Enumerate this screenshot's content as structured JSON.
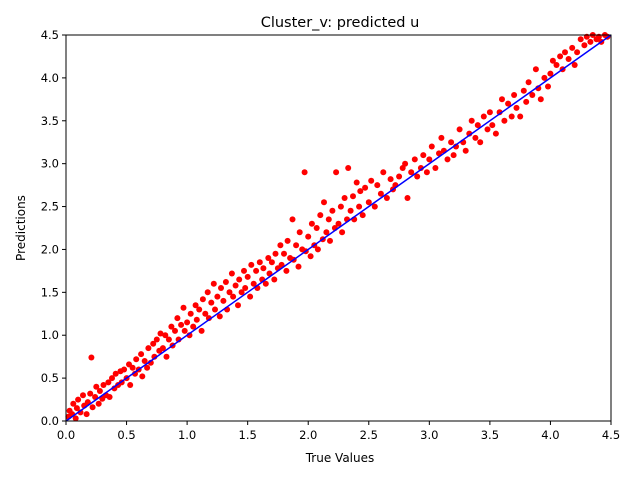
{
  "chart_data": {
    "type": "scatter",
    "title": "Cluster_v: predicted u",
    "xlabel": "True Values",
    "ylabel": "Predictions",
    "xlim": [
      0,
      4.5
    ],
    "ylim": [
      0,
      4.5
    ],
    "xticks": [
      "0.0",
      "0.5",
      "1.0",
      "1.5",
      "2.0",
      "2.5",
      "3.0",
      "3.5",
      "4.0",
      "4.5"
    ],
    "yticks": [
      "0.0",
      "0.5",
      "1.0",
      "1.5",
      "2.0",
      "2.5",
      "3.0",
      "3.5",
      "4.0",
      "4.5"
    ],
    "grid": false,
    "legend": "none",
    "series": [
      {
        "kind": "points",
        "color": "#ff0000",
        "points": [
          [
            0.02,
            0.05
          ],
          [
            0.03,
            0.12
          ],
          [
            0.05,
            0.08
          ],
          [
            0.06,
            0.2
          ],
          [
            0.08,
            0.03
          ],
          [
            0.09,
            0.15
          ],
          [
            0.1,
            0.25
          ],
          [
            0.12,
            0.1
          ],
          [
            0.14,
            0.3
          ],
          [
            0.15,
            0.18
          ],
          [
            0.17,
            0.08
          ],
          [
            0.18,
            0.22
          ],
          [
            0.2,
            0.32
          ],
          [
            0.21,
            0.74
          ],
          [
            0.22,
            0.16
          ],
          [
            0.24,
            0.28
          ],
          [
            0.25,
            0.4
          ],
          [
            0.27,
            0.2
          ],
          [
            0.28,
            0.35
          ],
          [
            0.3,
            0.26
          ],
          [
            0.31,
            0.42
          ],
          [
            0.33,
            0.3
          ],
          [
            0.35,
            0.45
          ],
          [
            0.36,
            0.28
          ],
          [
            0.38,
            0.5
          ],
          [
            0.4,
            0.38
          ],
          [
            0.41,
            0.55
          ],
          [
            0.43,
            0.42
          ],
          [
            0.45,
            0.58
          ],
          [
            0.46,
            0.45
          ],
          [
            0.48,
            0.6
          ],
          [
            0.5,
            0.5
          ],
          [
            0.52,
            0.66
          ],
          [
            0.53,
            0.42
          ],
          [
            0.55,
            0.62
          ],
          [
            0.57,
            0.55
          ],
          [
            0.58,
            0.72
          ],
          [
            0.6,
            0.6
          ],
          [
            0.62,
            0.78
          ],
          [
            0.63,
            0.52
          ],
          [
            0.65,
            0.7
          ],
          [
            0.67,
            0.62
          ],
          [
            0.68,
            0.85
          ],
          [
            0.7,
            0.68
          ],
          [
            0.72,
            0.9
          ],
          [
            0.73,
            0.75
          ],
          [
            0.75,
            0.95
          ],
          [
            0.77,
            0.82
          ],
          [
            0.78,
            1.02
          ],
          [
            0.8,
            0.85
          ],
          [
            0.82,
            1.0
          ],
          [
            0.83,
            0.75
          ],
          [
            0.85,
            0.95
          ],
          [
            0.87,
            1.1
          ],
          [
            0.88,
            0.88
          ],
          [
            0.9,
            1.05
          ],
          [
            0.92,
            1.2
          ],
          [
            0.93,
            0.95
          ],
          [
            0.95,
            1.12
          ],
          [
            0.97,
            1.32
          ],
          [
            0.98,
            1.05
          ],
          [
            1.0,
            1.15
          ],
          [
            1.02,
            1.0
          ],
          [
            1.03,
            1.25
          ],
          [
            1.05,
            1.1
          ],
          [
            1.07,
            1.35
          ],
          [
            1.08,
            1.18
          ],
          [
            1.1,
            1.3
          ],
          [
            1.12,
            1.05
          ],
          [
            1.13,
            1.42
          ],
          [
            1.15,
            1.25
          ],
          [
            1.17,
            1.5
          ],
          [
            1.18,
            1.2
          ],
          [
            1.2,
            1.38
          ],
          [
            1.22,
            1.6
          ],
          [
            1.23,
            1.3
          ],
          [
            1.25,
            1.45
          ],
          [
            1.27,
            1.22
          ],
          [
            1.28,
            1.55
          ],
          [
            1.3,
            1.4
          ],
          [
            1.32,
            1.62
          ],
          [
            1.33,
            1.3
          ],
          [
            1.35,
            1.5
          ],
          [
            1.37,
            1.72
          ],
          [
            1.38,
            1.45
          ],
          [
            1.4,
            1.58
          ],
          [
            1.42,
            1.35
          ],
          [
            1.43,
            1.65
          ],
          [
            1.45,
            1.5
          ],
          [
            1.47,
            1.75
          ],
          [
            1.48,
            1.55
          ],
          [
            1.5,
            1.68
          ],
          [
            1.52,
            1.45
          ],
          [
            1.53,
            1.82
          ],
          [
            1.55,
            1.6
          ],
          [
            1.57,
            1.75
          ],
          [
            1.58,
            1.55
          ],
          [
            1.6,
            1.85
          ],
          [
            1.62,
            1.65
          ],
          [
            1.63,
            1.78
          ],
          [
            1.65,
            1.6
          ],
          [
            1.67,
            1.9
          ],
          [
            1.68,
            1.72
          ],
          [
            1.7,
            1.85
          ],
          [
            1.72,
            1.65
          ],
          [
            1.73,
            1.95
          ],
          [
            1.75,
            1.78
          ],
          [
            1.77,
            2.05
          ],
          [
            1.78,
            1.82
          ],
          [
            1.8,
            1.95
          ],
          [
            1.82,
            1.75
          ],
          [
            1.83,
            2.1
          ],
          [
            1.85,
            1.9
          ],
          [
            1.87,
            2.35
          ],
          [
            1.88,
            1.88
          ],
          [
            1.9,
            2.05
          ],
          [
            1.92,
            1.8
          ],
          [
            1.93,
            2.2
          ],
          [
            1.95,
            2.0
          ],
          [
            1.97,
            2.9
          ],
          [
            1.98,
            1.98
          ],
          [
            2.0,
            2.15
          ],
          [
            2.02,
            1.92
          ],
          [
            2.03,
            2.3
          ],
          [
            2.05,
            2.05
          ],
          [
            2.07,
            2.25
          ],
          [
            2.08,
            2.0
          ],
          [
            2.1,
            2.4
          ],
          [
            2.12,
            2.12
          ],
          [
            2.13,
            2.55
          ],
          [
            2.15,
            2.2
          ],
          [
            2.17,
            2.35
          ],
          [
            2.18,
            2.1
          ],
          [
            2.2,
            2.45
          ],
          [
            2.22,
            2.25
          ],
          [
            2.23,
            2.9
          ],
          [
            2.25,
            2.3
          ],
          [
            2.27,
            2.5
          ],
          [
            2.28,
            2.2
          ],
          [
            2.3,
            2.6
          ],
          [
            2.32,
            2.35
          ],
          [
            2.33,
            2.95
          ],
          [
            2.35,
            2.45
          ],
          [
            2.37,
            2.62
          ],
          [
            2.38,
            2.35
          ],
          [
            2.4,
            2.78
          ],
          [
            2.42,
            2.5
          ],
          [
            2.43,
            2.68
          ],
          [
            2.45,
            2.4
          ],
          [
            2.47,
            2.72
          ],
          [
            2.5,
            2.55
          ],
          [
            2.52,
            2.8
          ],
          [
            2.55,
            2.5
          ],
          [
            2.57,
            2.75
          ],
          [
            2.6,
            2.65
          ],
          [
            2.62,
            2.9
          ],
          [
            2.65,
            2.6
          ],
          [
            2.68,
            2.82
          ],
          [
            2.7,
            2.7
          ],
          [
            2.72,
            2.75
          ],
          [
            2.75,
            2.85
          ],
          [
            2.78,
            2.95
          ],
          [
            2.8,
            3.0
          ],
          [
            2.82,
            2.6
          ],
          [
            2.85,
            2.9
          ],
          [
            2.88,
            3.05
          ],
          [
            2.9,
            2.85
          ],
          [
            2.93,
            2.95
          ],
          [
            2.95,
            3.1
          ],
          [
            2.98,
            2.9
          ],
          [
            3.0,
            3.05
          ],
          [
            3.02,
            3.2
          ],
          [
            3.05,
            2.95
          ],
          [
            3.08,
            3.12
          ],
          [
            3.1,
            3.3
          ],
          [
            3.12,
            3.15
          ],
          [
            3.15,
            3.05
          ],
          [
            3.18,
            3.25
          ],
          [
            3.2,
            3.1
          ],
          [
            3.22,
            3.2
          ],
          [
            3.25,
            3.4
          ],
          [
            3.28,
            3.25
          ],
          [
            3.3,
            3.15
          ],
          [
            3.33,
            3.35
          ],
          [
            3.35,
            3.5
          ],
          [
            3.38,
            3.3
          ],
          [
            3.4,
            3.45
          ],
          [
            3.42,
            3.25
          ],
          [
            3.45,
            3.55
          ],
          [
            3.48,
            3.4
          ],
          [
            3.5,
            3.6
          ],
          [
            3.52,
            3.45
          ],
          [
            3.55,
            3.35
          ],
          [
            3.58,
            3.6
          ],
          [
            3.6,
            3.75
          ],
          [
            3.62,
            3.5
          ],
          [
            3.65,
            3.7
          ],
          [
            3.68,
            3.55
          ],
          [
            3.7,
            3.8
          ],
          [
            3.72,
            3.65
          ],
          [
            3.75,
            3.55
          ],
          [
            3.78,
            3.85
          ],
          [
            3.8,
            3.72
          ],
          [
            3.82,
            3.95
          ],
          [
            3.85,
            3.8
          ],
          [
            3.88,
            4.1
          ],
          [
            3.9,
            3.88
          ],
          [
            3.92,
            3.75
          ],
          [
            3.95,
            4.0
          ],
          [
            3.98,
            3.9
          ],
          [
            4.0,
            4.05
          ],
          [
            4.02,
            4.2
          ],
          [
            4.05,
            4.15
          ],
          [
            4.08,
            4.25
          ],
          [
            4.1,
            4.1
          ],
          [
            4.12,
            4.3
          ],
          [
            4.15,
            4.22
          ],
          [
            4.18,
            4.35
          ],
          [
            4.2,
            4.15
          ],
          [
            4.22,
            4.3
          ],
          [
            4.25,
            4.45
          ],
          [
            4.28,
            4.38
          ],
          [
            4.3,
            4.48
          ],
          [
            4.33,
            4.42
          ],
          [
            4.35,
            4.5
          ],
          [
            4.38,
            4.45
          ],
          [
            4.4,
            4.48
          ],
          [
            4.42,
            4.42
          ],
          [
            4.45,
            4.5
          ],
          [
            4.47,
            4.48
          ]
        ]
      },
      {
        "kind": "line",
        "color": "#0000ff",
        "x": [
          0,
          4.5
        ],
        "y": [
          0,
          4.5
        ]
      }
    ]
  }
}
